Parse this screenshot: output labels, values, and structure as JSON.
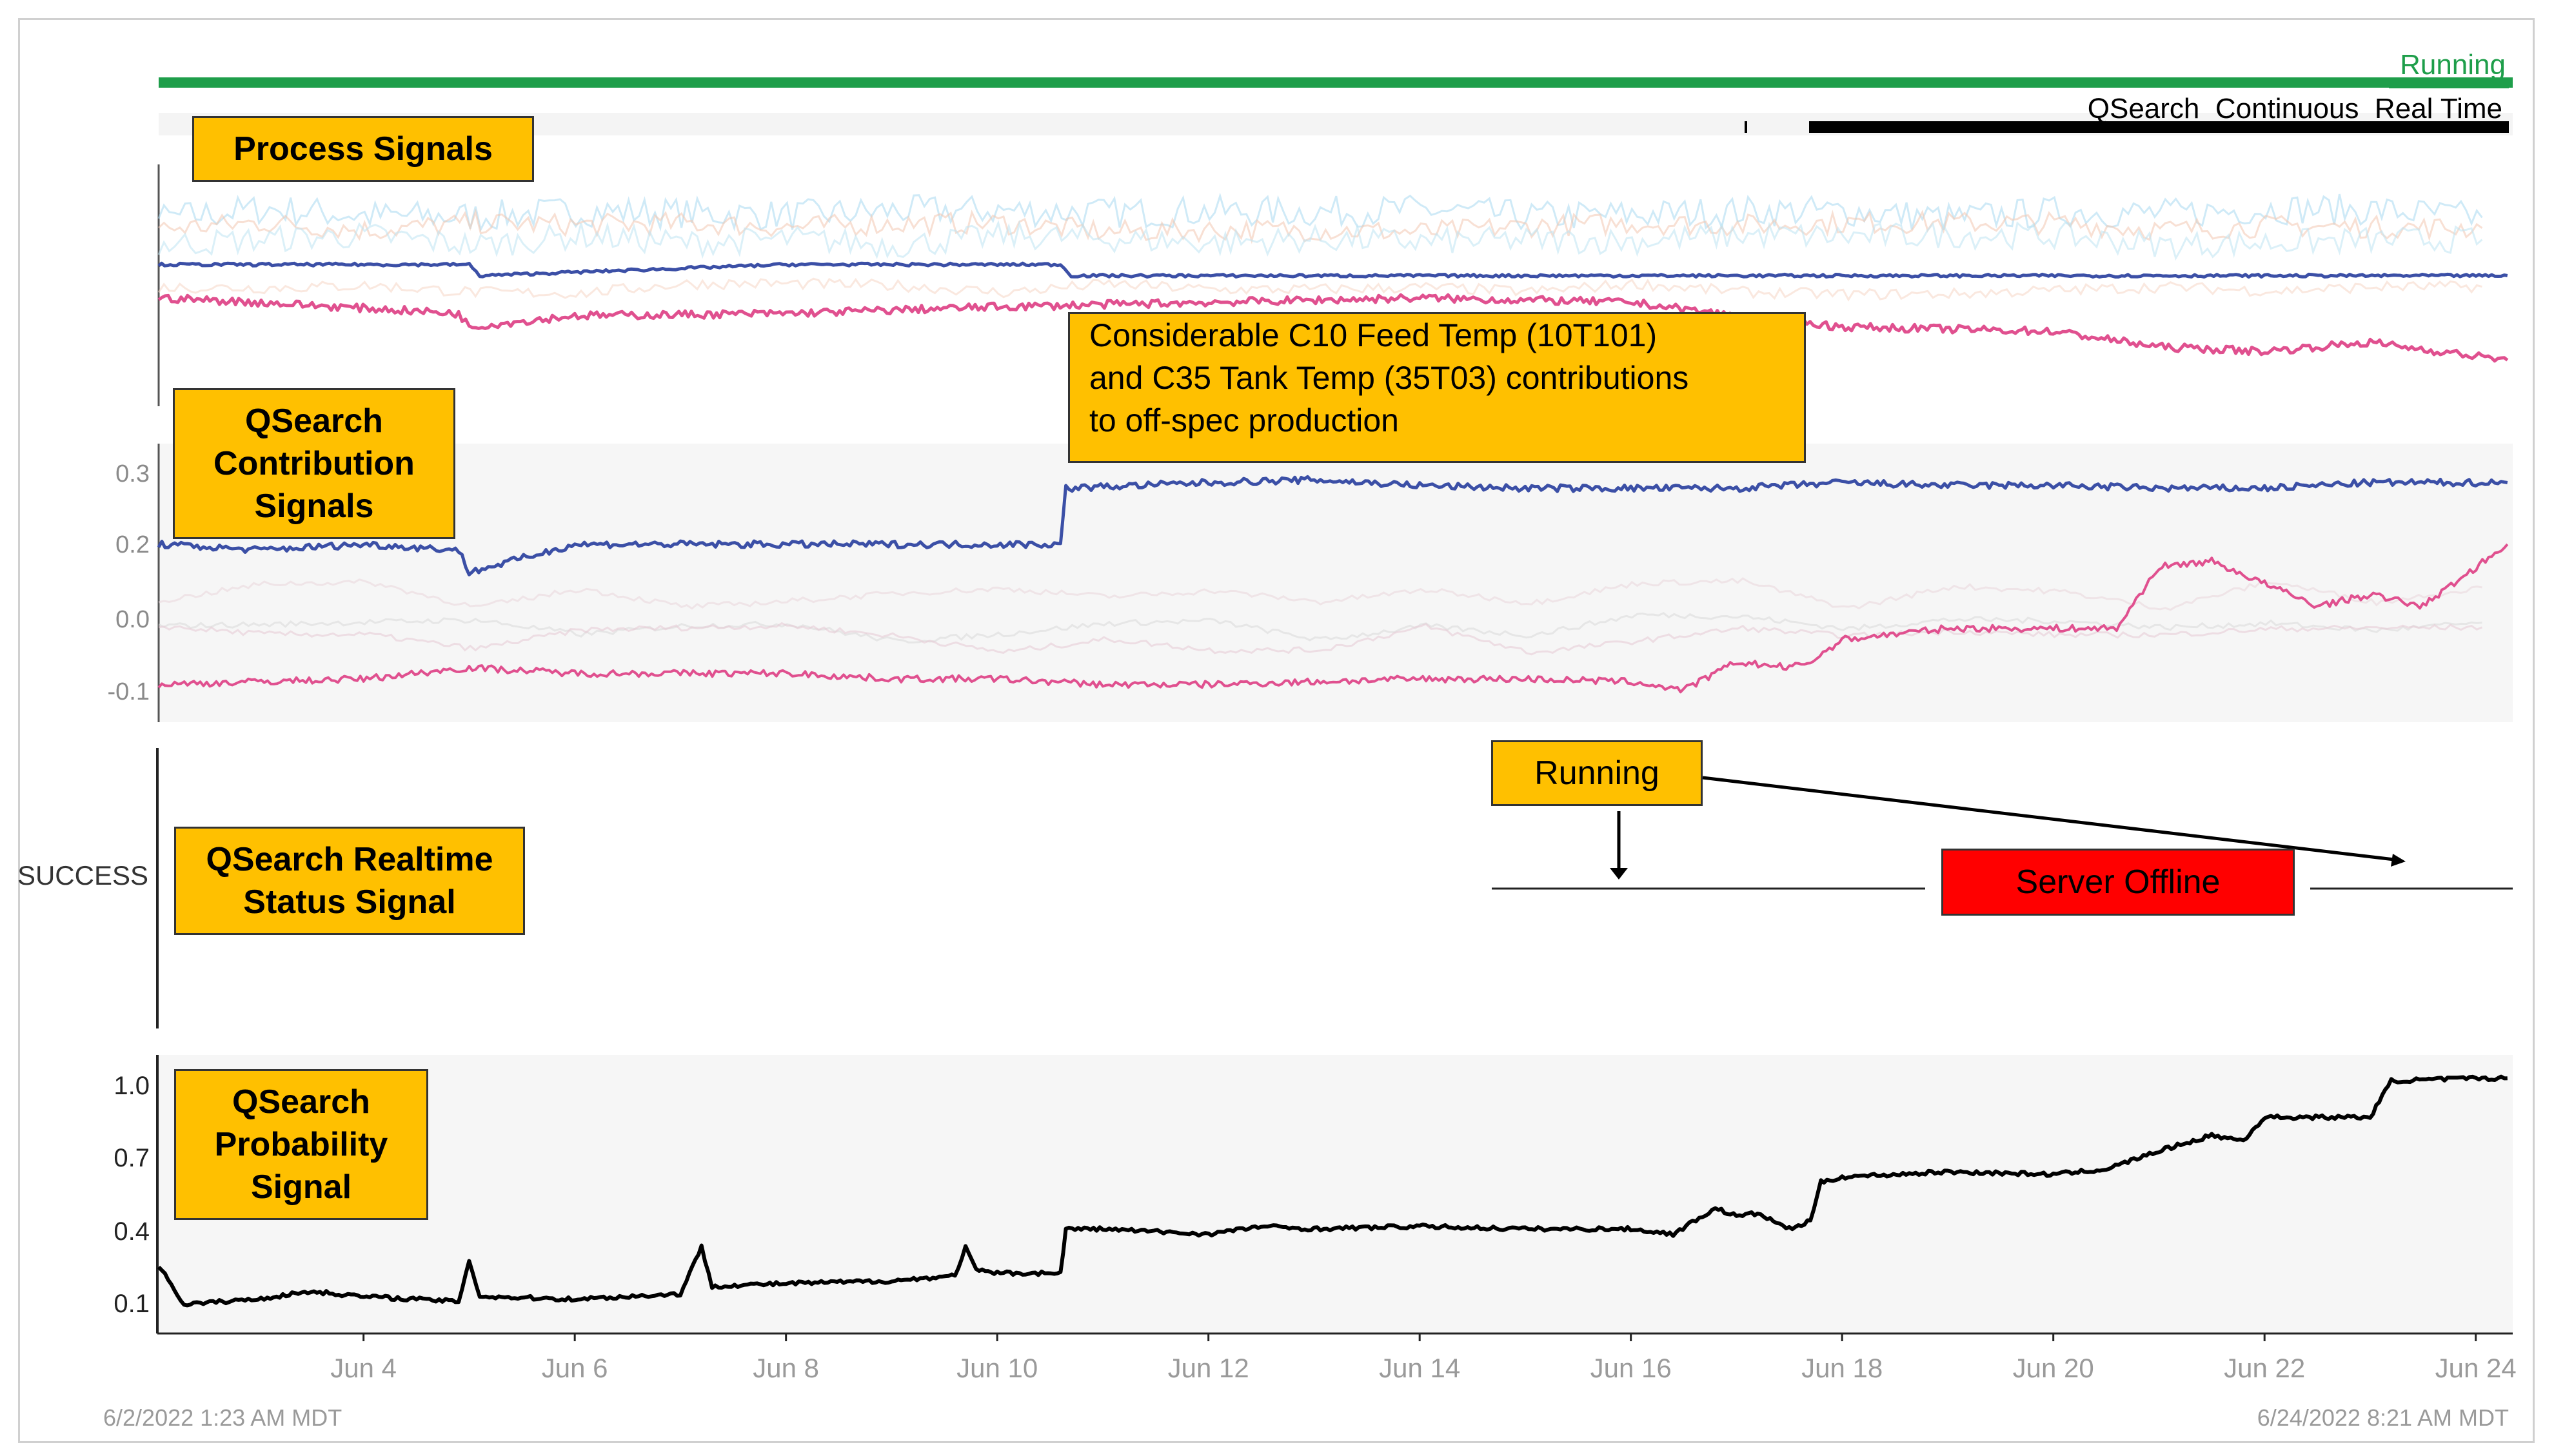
{
  "top_bar": {
    "status": "Running",
    "condition": "QSearch_Continuous_Real Time",
    "status_color": "#1e9e4a"
  },
  "callouts": {
    "process_signals": "Process Signals",
    "contribution_signals_lines": [
      "QSearch",
      "Contribution",
      "Signals"
    ],
    "annotation_lines": [
      "Considerable C10 Feed Temp (10T101)",
      "and C35 Tank Temp (35T03) contributions",
      "to off-spec production"
    ],
    "realtime_status_lines": [
      "QSearch Realtime",
      "Status Signal"
    ],
    "running": "Running",
    "server_offline": "Server Offline",
    "probability_lines": [
      "QSearch",
      "Probability",
      "Signal"
    ]
  },
  "status_axis_label": "SUCCESS",
  "time_range": {
    "start": "6/2/2022 1:23 AM  MDT",
    "end": "6/24/2022 8:21 AM  MDT"
  },
  "colors": {
    "blue": "#3b4fa6",
    "pink": "#e0508f",
    "probability": "#000000",
    "callout": "#ffc000",
    "offline": "#ff0000",
    "running_bar": "#1e9e4a"
  },
  "chart_data": [
    {
      "type": "line",
      "title": "Process Signals",
      "series": [
        {
          "values": [
            [
              2.06,
              0.55
            ],
            [
              2.2,
              0.55
            ],
            [
              5,
              0.55
            ],
            [
              5.1,
              0.5
            ],
            [
              8,
              0.55
            ],
            [
              10.6,
              0.55
            ],
            [
              10.7,
              0.5
            ],
            [
              14,
              0.5
            ],
            [
              18,
              0.5
            ],
            [
              22,
              0.5
            ],
            [
              24.3,
              0.5
            ]
          ]
        },
        {
          "values": [
            [
              2.06,
              0.4
            ],
            [
              3,
              0.38
            ],
            [
              4.9,
              0.33
            ],
            [
              5,
              0.27
            ],
            [
              6,
              0.32
            ],
            [
              8,
              0.33
            ],
            [
              10,
              0.36
            ],
            [
              12,
              0.38
            ],
            [
              14,
              0.4
            ],
            [
              16,
              0.38
            ],
            [
              17,
              0.32
            ],
            [
              18,
              0.27
            ],
            [
              20,
              0.25
            ],
            [
              21,
              0.18
            ],
            [
              22,
              0.16
            ],
            [
              23,
              0.2
            ],
            [
              24.3,
              0.12
            ]
          ]
        }
      ]
    },
    {
      "type": "line",
      "title": "QSearch Contribution Signals",
      "yticks": [
        "0.3",
        "0.2",
        "0.0",
        "-0.1"
      ],
      "ylim": [
        -0.13,
        0.33
      ],
      "series": [
        {
          "values": [
            [
              2.06,
              0.17
            ],
            [
              3,
              0.16
            ],
            [
              4,
              0.17
            ],
            [
              4.9,
              0.16
            ],
            [
              5,
              0.12
            ],
            [
              6,
              0.17
            ],
            [
              7,
              0.17
            ],
            [
              8,
              0.17
            ],
            [
              9,
              0.17
            ],
            [
              10,
              0.17
            ],
            [
              10.6,
              0.17
            ],
            [
              10.65,
              0.27
            ],
            [
              12,
              0.28
            ],
            [
              13,
              0.285
            ],
            [
              14,
              0.275
            ],
            [
              15,
              0.27
            ],
            [
              16,
              0.27
            ],
            [
              17,
              0.27
            ],
            [
              18,
              0.28
            ],
            [
              19,
              0.275
            ],
            [
              20,
              0.275
            ],
            [
              21,
              0.27
            ],
            [
              22,
              0.27
            ],
            [
              23,
              0.28
            ],
            [
              24.3,
              0.28
            ]
          ]
        },
        {
          "values": [
            [
              2.06,
              -0.08
            ],
            [
              3,
              -0.075
            ],
            [
              4,
              -0.07
            ],
            [
              5,
              -0.05
            ],
            [
              6,
              -0.06
            ],
            [
              7,
              -0.06
            ],
            [
              8,
              -0.06
            ],
            [
              9,
              -0.07
            ],
            [
              10,
              -0.07
            ],
            [
              11,
              -0.08
            ],
            [
              12,
              -0.08
            ],
            [
              13,
              -0.075
            ],
            [
              14,
              -0.07
            ],
            [
              15,
              -0.07
            ],
            [
              16,
              -0.075
            ],
            [
              16.5,
              -0.09
            ],
            [
              17,
              -0.04
            ],
            [
              17.5,
              -0.05
            ],
            [
              17.7,
              -0.04
            ],
            [
              18,
              0.0
            ],
            [
              19,
              0.02
            ],
            [
              20,
              0.02
            ],
            [
              20.6,
              0.02
            ],
            [
              21,
              0.13
            ],
            [
              21.5,
              0.14
            ],
            [
              22,
              0.1
            ],
            [
              22.5,
              0.06
            ],
            [
              23,
              0.08
            ],
            [
              23.5,
              0.06
            ],
            [
              24.3,
              0.17
            ]
          ]
        }
      ]
    },
    {
      "type": "line",
      "title": "QSearch Realtime Status Signal",
      "y_categories": [
        "SUCCESS"
      ],
      "segments": [
        {
          "label": "Running",
          "x": [
            14.8,
            17.3
          ]
        },
        {
          "label": "Server Offline",
          "x": [
            17.3,
            24.3
          ]
        }
      ]
    },
    {
      "type": "line",
      "title": "QSearch Probability Signal",
      "yticks": [
        "1.0",
        "0.7",
        "0.4",
        "0.1"
      ],
      "ylim": [
        0.05,
        1.05
      ],
      "xticks": [
        "Jun 4",
        "Jun 6",
        "Jun 8",
        "Jun 10",
        "Jun 12",
        "Jun 14",
        "Jun 16",
        "Jun 18",
        "Jun 20",
        "Jun 22",
        "Jun 24"
      ],
      "xtick_values": [
        4,
        6,
        8,
        10,
        12,
        14,
        16,
        18,
        20,
        22,
        24
      ],
      "xlim": [
        2.06,
        24.35
      ],
      "series": [
        {
          "values": [
            [
              2.06,
              0.28
            ],
            [
              2.3,
              0.13
            ],
            [
              3,
              0.15
            ],
            [
              3.5,
              0.18
            ],
            [
              4,
              0.16
            ],
            [
              4.5,
              0.15
            ],
            [
              4.9,
              0.14
            ],
            [
              5,
              0.3
            ],
            [
              5.1,
              0.16
            ],
            [
              6,
              0.15
            ],
            [
              7,
              0.17
            ],
            [
              7.2,
              0.35
            ],
            [
              7.3,
              0.2
            ],
            [
              8,
              0.21
            ],
            [
              9,
              0.22
            ],
            [
              9.6,
              0.24
            ],
            [
              9.7,
              0.35
            ],
            [
              9.8,
              0.26
            ],
            [
              10,
              0.25
            ],
            [
              10.6,
              0.25
            ],
            [
              10.65,
              0.42
            ],
            [
              11,
              0.42
            ],
            [
              12,
              0.4
            ],
            [
              12.5,
              0.43
            ],
            [
              13,
              0.42
            ],
            [
              14,
              0.43
            ],
            [
              15,
              0.42
            ],
            [
              16,
              0.42
            ],
            [
              16.4,
              0.4
            ],
            [
              16.8,
              0.5
            ],
            [
              17,
              0.47
            ],
            [
              17.2,
              0.48
            ],
            [
              17.5,
              0.42
            ],
            [
              17.7,
              0.45
            ],
            [
              17.8,
              0.6
            ],
            [
              18,
              0.62
            ],
            [
              19,
              0.64
            ],
            [
              20,
              0.63
            ],
            [
              20.5,
              0.65
            ],
            [
              21,
              0.72
            ],
            [
              21.5,
              0.78
            ],
            [
              21.8,
              0.76
            ],
            [
              22,
              0.85
            ],
            [
              23,
              0.85
            ],
            [
              23.2,
              0.99
            ],
            [
              24,
              1.0
            ],
            [
              24.3,
              1.0
            ]
          ]
        }
      ]
    }
  ]
}
